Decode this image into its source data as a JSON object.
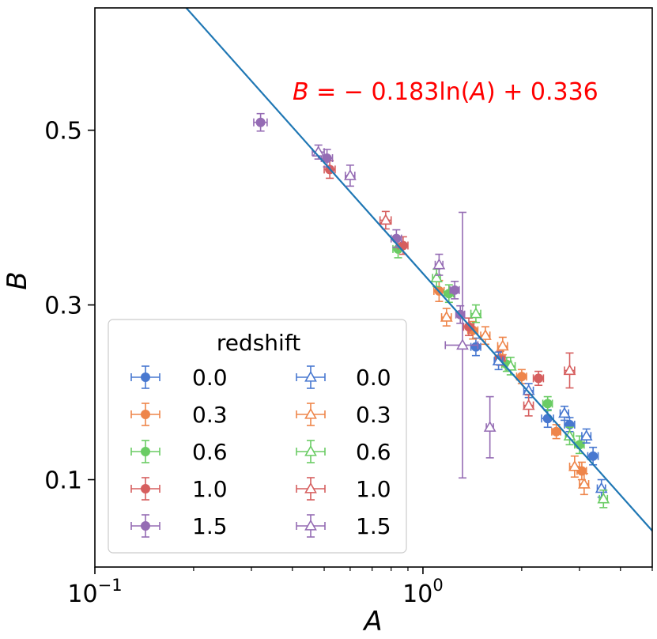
{
  "chart_data": {
    "type": "scatter",
    "xlabel": "A",
    "ylabel": "B",
    "x_scale": "log",
    "xlim": [
      0.1,
      5.0
    ],
    "ylim": [
      0.0,
      0.64
    ],
    "x_ticks": [
      {
        "value": 0.1,
        "base": "10",
        "exp": "−1"
      },
      {
        "value": 1.0,
        "base": "10",
        "exp": "0"
      }
    ],
    "y_ticks": [
      {
        "value": 0.1,
        "label": "0.1"
      },
      {
        "value": 0.3,
        "label": "0.3"
      },
      {
        "value": 0.5,
        "label": "0.5"
      }
    ],
    "fit_line": {
      "slope": -0.183,
      "intercept": 0.336,
      "color": "#1f77b4"
    },
    "annotation": {
      "text_B": "B",
      "text_rest": " = − 0.183ln(",
      "text_A": "A",
      "text_end": ") + 0.336",
      "color": "#ff0000"
    },
    "legend": {
      "title": "redshift",
      "position": "lower-left",
      "filled_labels": [
        "0.0",
        "0.3",
        "0.6",
        "1.0",
        "1.5"
      ],
      "open_labels": [
        "0.0",
        "0.3",
        "0.6",
        "1.0",
        "1.5"
      ]
    },
    "series": [
      {
        "name": "0.0",
        "marker": "circle",
        "color": "#4878d0",
        "points": [
          [
            1.45,
            0.252,
            0.05,
            0.01
          ],
          [
            2.4,
            0.17,
            0.1,
            0.01
          ],
          [
            2.8,
            0.163,
            0.1,
            0.008
          ],
          [
            3.3,
            0.127,
            0.12,
            0.01
          ]
        ]
      },
      {
        "name": "0.3",
        "marker": "circle",
        "color": "#ee854a",
        "points": [
          [
            1.12,
            0.316,
            0.04,
            0.012
          ],
          [
            1.42,
            0.271,
            0.05,
            0.01
          ],
          [
            2.0,
            0.218,
            0.07,
            0.008
          ],
          [
            2.55,
            0.155,
            0.08,
            0.008
          ],
          [
            3.05,
            0.11,
            0.1,
            0.01
          ]
        ]
      },
      {
        "name": "0.6",
        "marker": "circle",
        "color": "#6acc64",
        "points": [
          [
            0.84,
            0.364,
            0.03,
            0.01
          ],
          [
            1.2,
            0.313,
            0.04,
            0.01
          ],
          [
            1.8,
            0.232,
            0.06,
            0.008
          ],
          [
            2.4,
            0.187,
            0.08,
            0.008
          ],
          [
            3.0,
            0.14,
            0.1,
            0.01
          ]
        ]
      },
      {
        "name": "1.0",
        "marker": "circle",
        "color": "#d65f5f",
        "points": [
          [
            0.52,
            0.455,
            0.02,
            0.01
          ],
          [
            0.87,
            0.368,
            0.03,
            0.01
          ],
          [
            1.38,
            0.275,
            0.05,
            0.01
          ],
          [
            1.72,
            0.239,
            0.06,
            0.008
          ],
          [
            2.25,
            0.216,
            0.08,
            0.008
          ]
        ]
      },
      {
        "name": "1.5",
        "marker": "circle",
        "color": "#956cb4",
        "points": [
          [
            0.32,
            0.509,
            0.015,
            0.01
          ],
          [
            0.51,
            0.468,
            0.02,
            0.01
          ],
          [
            0.83,
            0.376,
            0.03,
            0.01
          ],
          [
            1.25,
            0.317,
            0.04,
            0.01
          ],
          [
            1.3,
            0.289,
            0.04,
            0.01
          ]
        ]
      },
      {
        "name": "0.0",
        "marker": "triangle-open",
        "color": "#4878d0",
        "points": [
          [
            1.7,
            0.236,
            0.05,
            0.01
          ],
          [
            2.1,
            0.202,
            0.07,
            0.008
          ],
          [
            2.7,
            0.176,
            0.08,
            0.008
          ],
          [
            3.15,
            0.15,
            0.1,
            0.008
          ],
          [
            3.5,
            0.09,
            0.1,
            0.01
          ]
        ]
      },
      {
        "name": "0.3",
        "marker": "triangle-open",
        "color": "#ee854a",
        "points": [
          [
            1.18,
            0.286,
            0.04,
            0.01
          ],
          [
            1.55,
            0.265,
            0.05,
            0.01
          ],
          [
            1.75,
            0.253,
            0.06,
            0.01
          ],
          [
            2.9,
            0.115,
            0.1,
            0.012
          ],
          [
            3.1,
            0.095,
            0.1,
            0.012
          ]
        ]
      },
      {
        "name": "0.6",
        "marker": "triangle-open",
        "color": "#6acc64",
        "points": [
          [
            1.1,
            0.331,
            0.03,
            0.01
          ],
          [
            1.45,
            0.29,
            0.05,
            0.01
          ],
          [
            1.85,
            0.23,
            0.06,
            0.01
          ],
          [
            2.8,
            0.15,
            0.08,
            0.01
          ],
          [
            3.55,
            0.078,
            0.1,
            0.01
          ]
        ]
      },
      {
        "name": "1.0",
        "marker": "triangle-open",
        "color": "#d65f5f",
        "points": [
          [
            0.77,
            0.397,
            0.03,
            0.01
          ],
          [
            2.1,
            0.185,
            0.07,
            0.012
          ],
          [
            2.8,
            0.225,
            0.1,
            0.02
          ]
        ]
      },
      {
        "name": "1.5",
        "marker": "triangle-open",
        "color": "#956cb4",
        "points": [
          [
            0.48,
            0.475,
            0.02,
            0.008
          ],
          [
            0.6,
            0.448,
            0.02,
            0.012
          ],
          [
            1.12,
            0.346,
            0.03,
            0.012
          ],
          [
            1.32,
            0.254,
            0.15,
            0.152
          ],
          [
            1.6,
            0.16,
            0.04,
            0.035
          ]
        ]
      }
    ]
  }
}
